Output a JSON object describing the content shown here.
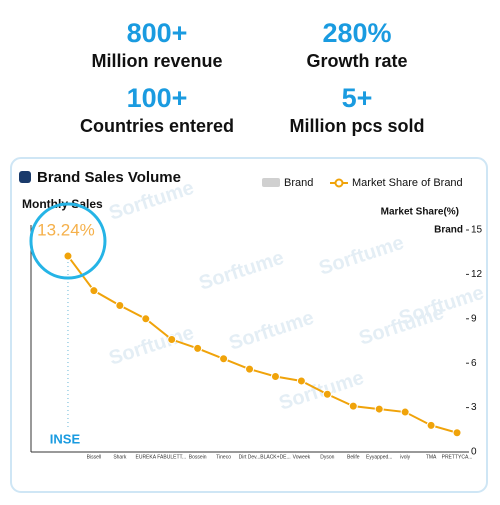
{
  "stats": [
    {
      "value": "800+",
      "label": "Million revenue"
    },
    {
      "value": "280%",
      "label": "Growth rate"
    },
    {
      "value": "100+",
      "label": "Countries entered"
    },
    {
      "value": "5+",
      "label": "Million pcs sold"
    }
  ],
  "watermark": "Sorftume",
  "chart_data": {
    "type": "line",
    "title": "Brand Sales Volume",
    "y_label": "Monthly Sales",
    "y2_label": "Market Share(%)",
    "y2_axis_title": "Brand",
    "categories": [
      "INSE",
      "Bissell",
      "Shark",
      "EUREKA",
      "FABULETT...",
      "Bossein",
      "Tineco",
      "Dirt Dev...",
      "BLACK+DE...",
      "Voweek",
      "Dyson",
      "Belife",
      "Eyyapped...",
      "ivoly",
      "TMA",
      "PRETTYCA..."
    ],
    "series": [
      {
        "name": "Brand",
        "color": "#d0d0d0",
        "values": [
          null,
          null,
          null,
          null,
          null,
          null,
          null,
          null,
          null,
          null,
          null,
          null,
          null,
          null,
          null,
          null
        ]
      },
      {
        "name": "Market Share of Brand",
        "color": "#f0a30a",
        "axis": "y2",
        "values": [
          13.24,
          10.9,
          9.9,
          9.0,
          7.6,
          7.0,
          6.3,
          5.6,
          5.1,
          4.8,
          3.9,
          3.1,
          2.9,
          2.7,
          1.8,
          1.3
        ],
        "value_labels": [
          "13.24%",
          null,
          null,
          null,
          null,
          null,
          null,
          null,
          null,
          null,
          null,
          null,
          null,
          null,
          null,
          null
        ]
      }
    ],
    "y2lim": [
      0,
      15
    ],
    "y2ticks": [
      0,
      3,
      6,
      9,
      12,
      15
    ],
    "legend": "top-right"
  }
}
